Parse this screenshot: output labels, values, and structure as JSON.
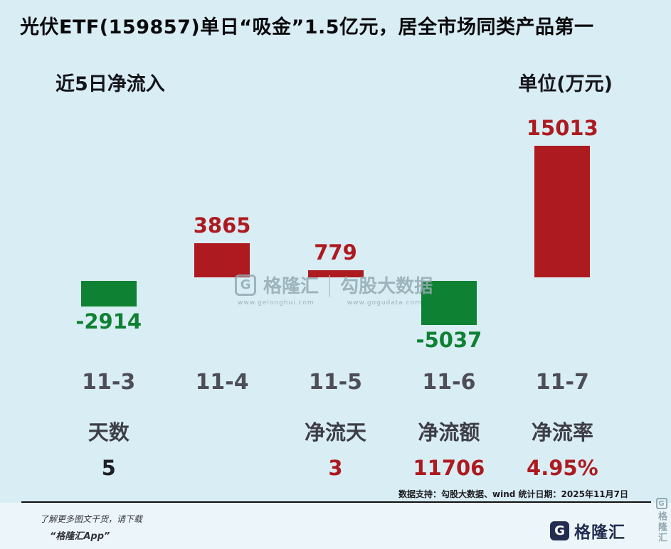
{
  "title": "光伏ETF(159857)单日“吸金”1.5亿元，居全市场同类产品第一",
  "chart_header": {
    "left": "近5日净流入",
    "right": "单位(万元)"
  },
  "chart_data": {
    "type": "bar",
    "title": "近5日净流入",
    "unit_label": "单位(万元)",
    "categories": [
      "11-3",
      "11-4",
      "11-5",
      "11-6",
      "11-7"
    ],
    "values": [
      -2914,
      3865,
      779,
      -5037,
      15013
    ],
    "value_labels": [
      "-2914",
      "3865",
      "779",
      "-5037",
      "15013"
    ],
    "positive_color": "#ad1a1f",
    "negative_color": "#0f8132",
    "ylim": [
      -5037,
      15013
    ],
    "grid": false,
    "legend": "none"
  },
  "stats": {
    "columns": [
      0,
      2,
      3,
      4
    ],
    "items": [
      {
        "label": "天数",
        "value": "5",
        "value_color": "#1f1f26"
      },
      {
        "label": "净流天",
        "value": "3",
        "value_color": "#ad1a1f"
      },
      {
        "label": "净流额",
        "value": "11706",
        "value_color": "#ad1a1f"
      },
      {
        "label": "净流率",
        "value": "4.95%",
        "value_color": "#ad1a1f"
      }
    ]
  },
  "source_note": "数据支持：勾股大数据、wind  统计日期：2025年11月7日",
  "watermark": {
    "logo_glyph": "G",
    "brand": "格隆汇",
    "separator": "|",
    "data_brand": "勾股大数据",
    "brand_url": "www.gelonghui.com",
    "data_url": "www.gogudata.com"
  },
  "footer": {
    "line1": "了解更多图文干货，请下载",
    "line2": "“格隆汇App”",
    "logo_glyph": "G",
    "logo_text": "格隆汇",
    "side_glyph": "G",
    "side_text": "格隆汇"
  }
}
